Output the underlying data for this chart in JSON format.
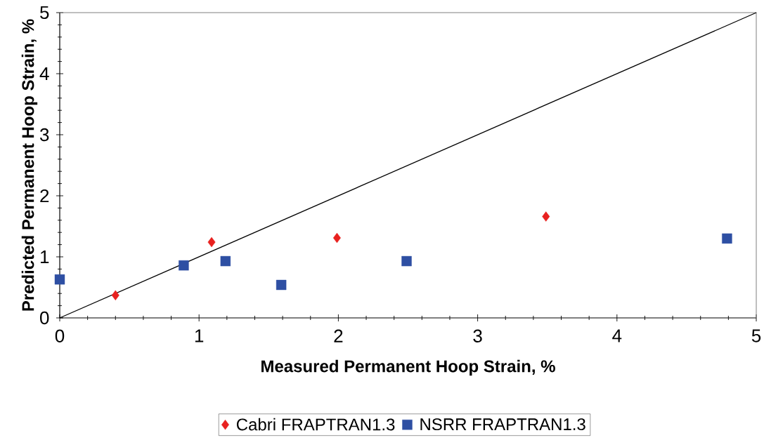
{
  "chart_data": {
    "type": "scatter",
    "xlabel": "Measured Permanent Hoop Strain, %",
    "ylabel": "Predicted Permanent Hoop Strain, %",
    "series": [
      {
        "name": "Cabri FRAPTRAN1.3",
        "color": "#e8211f",
        "marker": "diamond",
        "x": [
          0.4,
          1.09,
          1.99,
          3.49
        ],
        "values": [
          0.37,
          1.24,
          1.31,
          1.66
        ]
      },
      {
        "name": "NSRR FRAPTRAN1.3",
        "color": "#2e4fa3",
        "marker": "square",
        "x": [
          0.0,
          0.89,
          1.19,
          1.59,
          2.49,
          4.79
        ],
        "values": [
          0.63,
          0.86,
          0.93,
          0.54,
          0.93,
          1.3
        ]
      },
      {
        "type": "line",
        "color": "#000000",
        "x": [
          0,
          5
        ],
        "values": [
          0,
          5
        ]
      }
    ],
    "xlim": [
      0,
      5
    ],
    "ylim": [
      0,
      5
    ],
    "xticks": [
      0,
      1,
      2,
      3,
      4,
      5
    ],
    "yticks": [
      0,
      1,
      2,
      3,
      4,
      5
    ],
    "grid": false,
    "legend": "bottom"
  }
}
